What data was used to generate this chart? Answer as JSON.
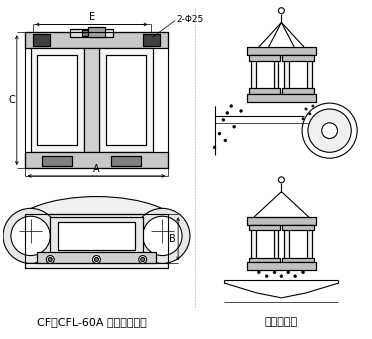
{
  "title_left": "CF、CFL-60A 型外形尺寸图",
  "title_right": "安装示意图",
  "label_E": "E",
  "label_A": "A",
  "label_C": "C",
  "label_B": "B",
  "label_hole": "2-Φ25",
  "bg_color": "#ffffff",
  "line_color": "#000000",
  "font_size_title": 8,
  "font_size_label": 7
}
